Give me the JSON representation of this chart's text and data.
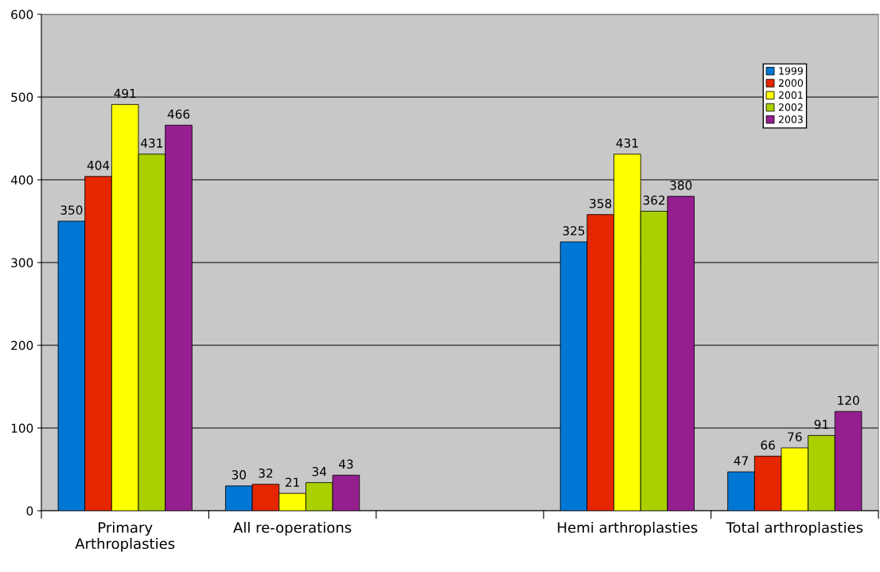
{
  "chart_data": {
    "type": "bar",
    "categories": [
      "Primary\nArthroplasties",
      "All re-operations",
      null,
      "Hemi arthroplasties",
      "Total arthroplasties"
    ],
    "series": [
      {
        "name": "1999",
        "color": "#0077d4",
        "values": [
          350,
          30,
          null,
          325,
          47
        ]
      },
      {
        "name": "2000",
        "color": "#e52600",
        "values": [
          404,
          32,
          null,
          358,
          66
        ]
      },
      {
        "name": "2001",
        "color": "#ffff00",
        "values": [
          491,
          21,
          null,
          431,
          76
        ]
      },
      {
        "name": "2002",
        "color": "#aad000",
        "values": [
          431,
          34,
          null,
          362,
          91
        ]
      },
      {
        "name": "2003",
        "color": "#951f8f",
        "values": [
          466,
          43,
          null,
          380,
          120
        ]
      }
    ],
    "ylim": [
      0,
      600
    ],
    "yticks": [
      0,
      100,
      200,
      300,
      400,
      500,
      600
    ],
    "grid": "y",
    "legend": "top right",
    "data_labels": true
  }
}
